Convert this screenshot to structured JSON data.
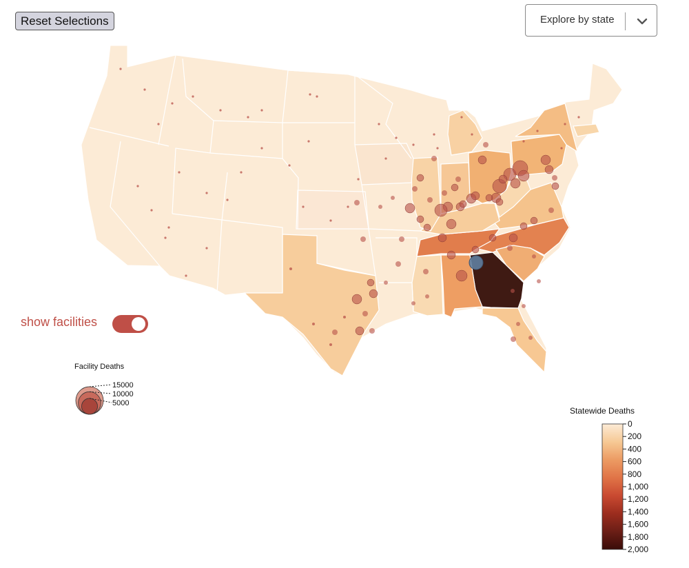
{
  "controls": {
    "reset_label": "Reset Selections",
    "explore_label": "Explore by state",
    "show_facilities_label": "show facilities",
    "show_facilities_on": true
  },
  "size_legend": {
    "title": "Facility Deaths",
    "values": [
      15000,
      10000,
      5000
    ],
    "labels": [
      "15000",
      "10000",
      "5000"
    ]
  },
  "color_legend": {
    "title": "Statewide Deaths",
    "min": 0,
    "max": 2000,
    "ticks": [
      0,
      200,
      400,
      600,
      800,
      1000,
      1200,
      1400,
      1600,
      1800,
      2000
    ],
    "tick_labels": [
      "0",
      "200",
      "400",
      "600",
      "800",
      "1,000",
      "1,200",
      "1,400",
      "1,600",
      "1,800",
      "2,000"
    ],
    "color_stops": [
      "#fcebd6",
      "#f6c995",
      "#ec9b63",
      "#e07447",
      "#c94a31",
      "#9c2d1e",
      "#6b1e16",
      "#3a0c08"
    ]
  },
  "colors": {
    "accent": "#bf4f47",
    "facility_dot": "#b8524a",
    "selected_facility": "#5f7ea0",
    "state_border": "#ffffff"
  },
  "states": [
    {
      "name": "Georgia",
      "deaths": 1950
    },
    {
      "name": "North Carolina",
      "deaths": 690
    },
    {
      "name": "Tennessee",
      "deaths": 680
    },
    {
      "name": "Alabama",
      "deaths": 560
    },
    {
      "name": "Ohio",
      "deaths": 400
    },
    {
      "name": "Pennsylvania",
      "deaths": 390
    },
    {
      "name": "New York",
      "deaths": 340
    },
    {
      "name": "South Carolina",
      "deaths": 390
    },
    {
      "name": "Virginia",
      "deaths": 310
    },
    {
      "name": "Indiana",
      "deaths": 250
    },
    {
      "name": "Michigan",
      "deaths": 200
    },
    {
      "name": "Florida",
      "deaths": 260
    },
    {
      "name": "Texas",
      "deaths": 240
    },
    {
      "name": "Kentucky",
      "deaths": 210
    },
    {
      "name": "Illinois",
      "deaths": 180
    },
    {
      "name": "Mississippi",
      "deaths": 140
    },
    {
      "name": "West Virginia",
      "deaths": 120
    },
    {
      "name": "Massachusetts",
      "deaths": 150
    }
  ]
}
